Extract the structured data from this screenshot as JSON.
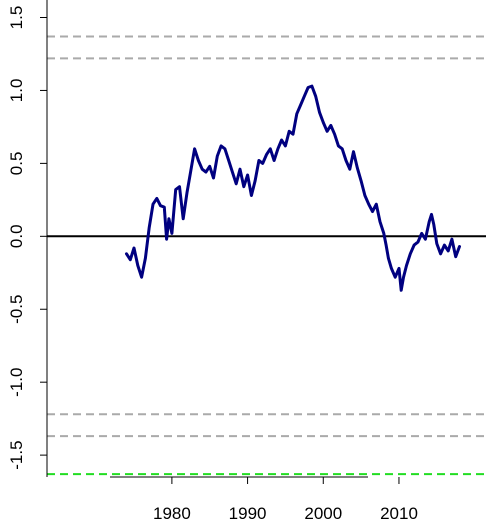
{
  "chart_data": {
    "type": "line",
    "title": "",
    "xlabel": "",
    "ylabel": "",
    "xlim": [
      1963.5,
      2021.5
    ],
    "ylim": [
      -1.65,
      1.62
    ],
    "x_ticks": [
      1980,
      1990,
      2000,
      2010
    ],
    "x_tick_labels": [
      "1980",
      "1990",
      "2000",
      "2010"
    ],
    "y_ticks": [
      -1.5,
      -1.0,
      -0.5,
      0.0,
      0.5,
      1.0,
      1.5
    ],
    "y_tick_labels": [
      "-1.5",
      "-1.0",
      "-0.5",
      "0.0",
      "0.5",
      "1.0",
      "1.5"
    ],
    "grid": false,
    "series": [
      {
        "color": "#000080",
        "x": [
          1974.0,
          1974.5,
          1975.0,
          1975.5,
          1976.0,
          1976.5,
          1977.0,
          1977.5,
          1978.0,
          1978.5,
          1979.0,
          1979.3,
          1979.6,
          1980.0,
          1980.5,
          1981.0,
          1981.5,
          1982.0,
          1982.5,
          1983.0,
          1983.5,
          1984.0,
          1984.5,
          1985.0,
          1985.5,
          1986.0,
          1986.5,
          1987.0,
          1987.5,
          1988.0,
          1988.5,
          1989.0,
          1989.5,
          1990.0,
          1990.5,
          1991.0,
          1991.5,
          1992.0,
          1992.5,
          1993.0,
          1993.5,
          1994.0,
          1994.5,
          1995.0,
          1995.5,
          1996.0,
          1996.5,
          1997.0,
          1997.5,
          1998.0,
          1998.5,
          1999.0,
          1999.5,
          2000.0,
          2000.5,
          2001.0,
          2001.5,
          2002.0,
          2002.5,
          2003.0,
          2003.5,
          2004.0,
          2004.5,
          2005.0,
          2005.5,
          2006.0,
          2006.5,
          2007.0,
          2007.5,
          2008.0,
          2008.3,
          2008.6,
          2009.0,
          2009.5,
          2010.0,
          2010.3,
          2010.6,
          2011.0,
          2011.5,
          2012.0,
          2012.5,
          2013.0,
          2013.5,
          2014.0,
          2014.3,
          2014.6,
          2015.0,
          2015.5,
          2016.0,
          2016.5,
          2017.0,
          2017.5,
          2018.0
        ],
        "y": [
          -0.12,
          -0.16,
          -0.08,
          -0.2,
          -0.28,
          -0.15,
          0.06,
          0.22,
          0.26,
          0.21,
          0.2,
          -0.02,
          0.12,
          0.02,
          0.32,
          0.34,
          0.12,
          0.3,
          0.45,
          0.6,
          0.52,
          0.46,
          0.44,
          0.48,
          0.4,
          0.55,
          0.62,
          0.6,
          0.52,
          0.44,
          0.36,
          0.46,
          0.34,
          0.42,
          0.28,
          0.38,
          0.52,
          0.5,
          0.56,
          0.6,
          0.52,
          0.6,
          0.66,
          0.62,
          0.72,
          0.7,
          0.84,
          0.9,
          0.96,
          1.02,
          1.03,
          0.96,
          0.85,
          0.78,
          0.72,
          0.76,
          0.7,
          0.62,
          0.6,
          0.52,
          0.46,
          0.58,
          0.47,
          0.38,
          0.28,
          0.22,
          0.17,
          0.22,
          0.1,
          0.02,
          -0.06,
          -0.15,
          -0.22,
          -0.28,
          -0.22,
          -0.37,
          -0.28,
          -0.2,
          -0.12,
          -0.06,
          -0.04,
          0.02,
          -0.02,
          0.1,
          0.15,
          0.08,
          -0.05,
          -0.12,
          -0.06,
          -0.1,
          -0.02,
          -0.14,
          -0.07
        ]
      }
    ],
    "reference_lines": [
      {
        "y": 0.0,
        "style": "solid",
        "color": "#000000"
      },
      {
        "y": 1.37,
        "style": "dashed",
        "color": "#aaaaaa"
      },
      {
        "y": 1.22,
        "style": "dashed",
        "color": "#aaaaaa"
      },
      {
        "y": -1.22,
        "style": "dashed",
        "color": "#aaaaaa"
      },
      {
        "y": -1.37,
        "style": "dashed",
        "color": "#aaaaaa"
      },
      {
        "y": -1.63,
        "style": "dashed",
        "color": "#22dd22"
      }
    ]
  }
}
